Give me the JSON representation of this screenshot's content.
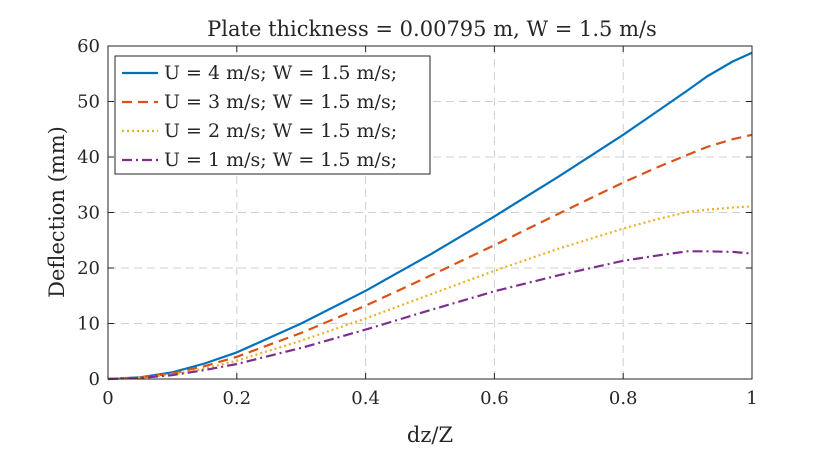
{
  "chart_data": {
    "type": "line",
    "title": "Plate thickness = 0.00795 m, W = 1.5 m/s",
    "xlabel": "dz/Z",
    "ylabel": "Deflection (mm)",
    "xlim": [
      0,
      1
    ],
    "ylim": [
      0,
      60
    ],
    "xticks": [
      0,
      0.2,
      0.4,
      0.6,
      0.8,
      1
    ],
    "yticks": [
      0,
      10,
      20,
      30,
      40,
      50,
      60
    ],
    "xtick_labels": [
      "0",
      "0.2",
      "0.4",
      "0.6",
      "0.8",
      "1"
    ],
    "ytick_labels": [
      "0",
      "10",
      "20",
      "30",
      "40",
      "50",
      "60"
    ],
    "grid": true,
    "legend_position": "top-left",
    "x": [
      0,
      0.05,
      0.1,
      0.15,
      0.2,
      0.3,
      0.4,
      0.5,
      0.6,
      0.7,
      0.8,
      0.85,
      0.9,
      0.93,
      0.97,
      1.0
    ],
    "series": [
      {
        "name": "U = 4 m/s; W = 1.5 m/s;",
        "color": "#0072BD",
        "dash": "solid",
        "values": [
          0,
          0.3,
          1.2,
          2.8,
          4.8,
          10.0,
          15.9,
          22.4,
          29.3,
          36.5,
          44.0,
          48.0,
          52.0,
          54.5,
          57.2,
          58.8
        ]
      },
      {
        "name": "U = 3 m/s; W = 1.5 m/s;",
        "color": "#D95319",
        "dash": "dashed",
        "values": [
          0,
          0.25,
          1.0,
          2.3,
          4.0,
          8.3,
          13.2,
          18.6,
          24.1,
          29.8,
          35.4,
          38.0,
          40.4,
          41.8,
          43.2,
          44.0
        ]
      },
      {
        "name": "U = 2 m/s; W = 1.5 m/s;",
        "color": "#EDB120",
        "dash": "dotted",
        "values": [
          0,
          0.2,
          0.8,
          1.9,
          3.3,
          6.9,
          10.9,
          15.2,
          19.5,
          23.5,
          27.1,
          28.7,
          30.1,
          30.5,
          30.9,
          31.1
        ]
      },
      {
        "name": "U = 1 m/s; W = 1.5 m/s;",
        "color": "#7E2F8E",
        "dash": "dashdot",
        "values": [
          0,
          0.18,
          0.7,
          1.6,
          2.7,
          5.6,
          8.9,
          12.4,
          15.8,
          18.7,
          21.3,
          22.2,
          23.0,
          23.0,
          22.9,
          22.6
        ]
      }
    ]
  }
}
